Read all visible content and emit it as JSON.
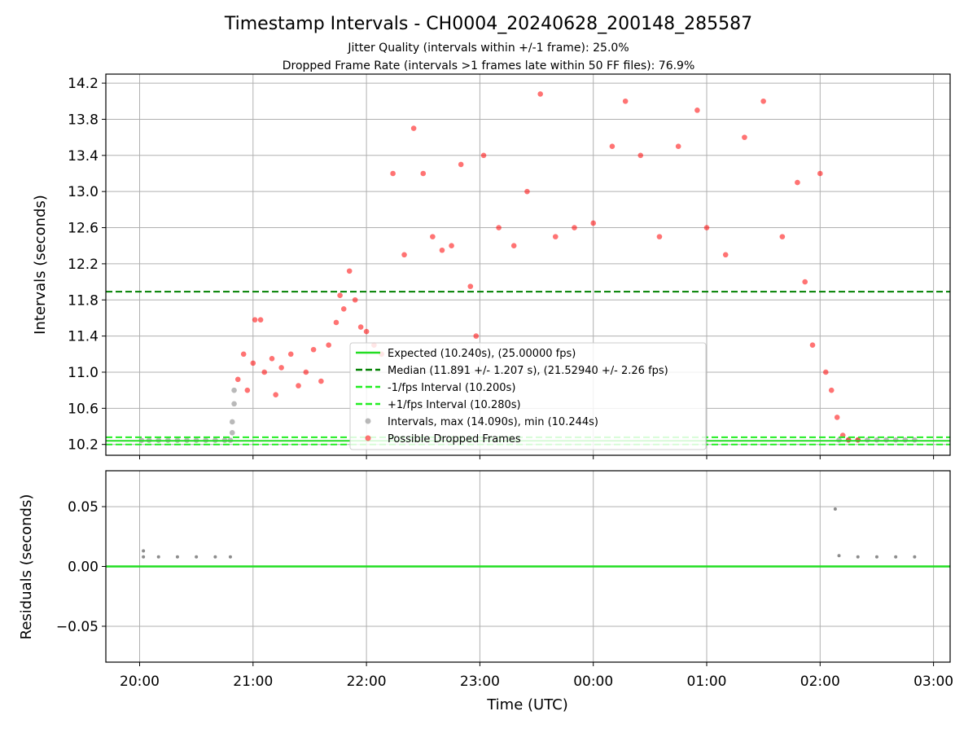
{
  "figure": {
    "title": "Timestamp Intervals - CH0004_20240628_200148_285587",
    "subtitle_1": "Jitter Quality (intervals within +/-1 frame): 25.0%",
    "subtitle_2": "Dropped Frame Rate (intervals >1 frames late within 50 FF files): 76.9%"
  },
  "chart_data": [
    {
      "type": "scatter",
      "ylabel": "Intervals (seconds)",
      "xlabel": "",
      "ylim": [
        10.08,
        14.3
      ],
      "xlim": [
        "19:48",
        "03:10"
      ],
      "yticks": [
        "10.2",
        "10.6",
        "11.0",
        "11.4",
        "11.8",
        "12.2",
        "12.6",
        "13.0",
        "13.4",
        "13.8",
        "14.2"
      ],
      "grid": true,
      "legend_position": "lower-center",
      "reference_lines": [
        {
          "name": "Expected (10.240s), (25.00000 fps)",
          "y": 10.24,
          "style": "solid",
          "color": "#22dd22"
        },
        {
          "name": "Median (11.891 +/- 1.207 s), (21.52940 +/- 2.26 fps)",
          "y": 11.891,
          "style": "dashed",
          "color": "#008000"
        },
        {
          "name": "-1/fps Interval (10.200s)",
          "y": 10.2,
          "style": "dashed",
          "color": "#22ee22"
        },
        {
          "name": "+1/fps Interval (10.280s)",
          "y": 10.28,
          "style": "dashed",
          "color": "#22ee22"
        }
      ],
      "series": [
        {
          "name": "Intervals, max (14.090s), min (10.244s)",
          "color": "#808080",
          "points": [
            {
              "x": "20:01",
              "y": 10.245
            },
            {
              "x": "20:05",
              "y": 10.246
            },
            {
              "x": "20:10",
              "y": 10.246
            },
            {
              "x": "20:15",
              "y": 10.246
            },
            {
              "x": "20:20",
              "y": 10.246
            },
            {
              "x": "20:25",
              "y": 10.246
            },
            {
              "x": "20:30",
              "y": 10.246
            },
            {
              "x": "20:35",
              "y": 10.246
            },
            {
              "x": "20:40",
              "y": 10.246
            },
            {
              "x": "20:45",
              "y": 10.246
            },
            {
              "x": "20:48",
              "y": 10.246
            },
            {
              "x": "20:49",
              "y": 10.33
            },
            {
              "x": "20:49",
              "y": 10.45
            },
            {
              "x": "20:50",
              "y": 10.65
            },
            {
              "x": "20:50",
              "y": 10.8
            },
            {
              "x": "02:10",
              "y": 10.25
            },
            {
              "x": "02:15",
              "y": 10.25
            },
            {
              "x": "02:20",
              "y": 10.25
            },
            {
              "x": "02:25",
              "y": 10.25
            },
            {
              "x": "02:30",
              "y": 10.25
            },
            {
              "x": "02:35",
              "y": 10.25
            },
            {
              "x": "02:40",
              "y": 10.25
            },
            {
              "x": "02:45",
              "y": 10.25
            },
            {
              "x": "02:50",
              "y": 10.25
            }
          ]
        },
        {
          "name": "Possible Dropped Frames",
          "color": "#ff0000",
          "points": [
            {
              "x": "20:52",
              "y": 10.92
            },
            {
              "x": "20:55",
              "y": 11.2
            },
            {
              "x": "20:57",
              "y": 10.8
            },
            {
              "x": "21:00",
              "y": 11.1
            },
            {
              "x": "21:01",
              "y": 11.58
            },
            {
              "x": "21:04",
              "y": 11.58
            },
            {
              "x": "21:06",
              "y": 11.0
            },
            {
              "x": "21:10",
              "y": 11.15
            },
            {
              "x": "21:12",
              "y": 10.75
            },
            {
              "x": "21:15",
              "y": 11.05
            },
            {
              "x": "21:20",
              "y": 11.2
            },
            {
              "x": "21:24",
              "y": 10.85
            },
            {
              "x": "21:28",
              "y": 11.0
            },
            {
              "x": "21:32",
              "y": 11.25
            },
            {
              "x": "21:36",
              "y": 10.9
            },
            {
              "x": "21:40",
              "y": 11.3
            },
            {
              "x": "21:44",
              "y": 11.55
            },
            {
              "x": "21:46",
              "y": 11.85
            },
            {
              "x": "21:48",
              "y": 11.7
            },
            {
              "x": "21:51",
              "y": 12.12
            },
            {
              "x": "21:54",
              "y": 11.8
            },
            {
              "x": "21:57",
              "y": 11.5
            },
            {
              "x": "22:00",
              "y": 11.45
            },
            {
              "x": "22:04",
              "y": 11.3
            },
            {
              "x": "22:08",
              "y": 11.2
            },
            {
              "x": "22:14",
              "y": 13.2
            },
            {
              "x": "22:20",
              "y": 12.3
            },
            {
              "x": "22:25",
              "y": 13.7
            },
            {
              "x": "22:30",
              "y": 13.2
            },
            {
              "x": "22:35",
              "y": 12.5
            },
            {
              "x": "22:40",
              "y": 12.35
            },
            {
              "x": "22:45",
              "y": 12.4
            },
            {
              "x": "22:50",
              "y": 13.3
            },
            {
              "x": "22:55",
              "y": 11.95
            },
            {
              "x": "22:58",
              "y": 11.4
            },
            {
              "x": "23:02",
              "y": 13.4
            },
            {
              "x": "23:10",
              "y": 12.6
            },
            {
              "x": "23:18",
              "y": 12.4
            },
            {
              "x": "23:25",
              "y": 13.0
            },
            {
              "x": "23:32",
              "y": 14.08
            },
            {
              "x": "23:40",
              "y": 12.5
            },
            {
              "x": "23:50",
              "y": 12.6
            },
            {
              "x": "00:00",
              "y": 12.65
            },
            {
              "x": "00:10",
              "y": 13.5
            },
            {
              "x": "00:17",
              "y": 14.0
            },
            {
              "x": "00:25",
              "y": 13.4
            },
            {
              "x": "00:35",
              "y": 12.5
            },
            {
              "x": "00:45",
              "y": 13.5
            },
            {
              "x": "00:55",
              "y": 13.9
            },
            {
              "x": "01:00",
              "y": 12.6
            },
            {
              "x": "01:10",
              "y": 12.3
            },
            {
              "x": "01:20",
              "y": 13.6
            },
            {
              "x": "01:30",
              "y": 14.0
            },
            {
              "x": "01:40",
              "y": 12.5
            },
            {
              "x": "01:48",
              "y": 13.1
            },
            {
              "x": "01:52",
              "y": 12.0
            },
            {
              "x": "01:56",
              "y": 11.3
            },
            {
              "x": "02:00",
              "y": 13.2
            },
            {
              "x": "02:03",
              "y": 11.0
            },
            {
              "x": "02:06",
              "y": 10.8
            },
            {
              "x": "02:09",
              "y": 10.5
            },
            {
              "x": "02:12",
              "y": 10.3
            },
            {
              "x": "02:15",
              "y": 10.25
            },
            {
              "x": "02:20",
              "y": 10.25
            }
          ]
        }
      ]
    },
    {
      "type": "scatter",
      "ylabel": "Residuals (seconds)",
      "xlabel": "Time (UTC)",
      "ylim": [
        -0.08,
        0.08
      ],
      "yticks": [
        "0.05",
        "0.00",
        "−0.05"
      ],
      "xticks": [
        "20:00",
        "21:00",
        "22:00",
        "23:00",
        "00:00",
        "01:00",
        "02:00",
        "03:00"
      ],
      "grid": true,
      "reference_lines": [
        {
          "y": 0.0,
          "style": "solid",
          "color": "#22dd22"
        }
      ],
      "series": [
        {
          "color": "#808080",
          "points": [
            {
              "x": "20:02",
              "y": 0.013
            },
            {
              "x": "20:02",
              "y": 0.008
            },
            {
              "x": "20:10",
              "y": 0.008
            },
            {
              "x": "20:20",
              "y": 0.008
            },
            {
              "x": "20:30",
              "y": 0.008
            },
            {
              "x": "20:40",
              "y": 0.008
            },
            {
              "x": "20:48",
              "y": 0.008
            },
            {
              "x": "02:08",
              "y": 0.048
            },
            {
              "x": "02:10",
              "y": 0.009
            },
            {
              "x": "02:20",
              "y": 0.008
            },
            {
              "x": "02:30",
              "y": 0.008
            },
            {
              "x": "02:40",
              "y": 0.008
            },
            {
              "x": "02:50",
              "y": 0.008
            }
          ]
        }
      ]
    }
  ]
}
